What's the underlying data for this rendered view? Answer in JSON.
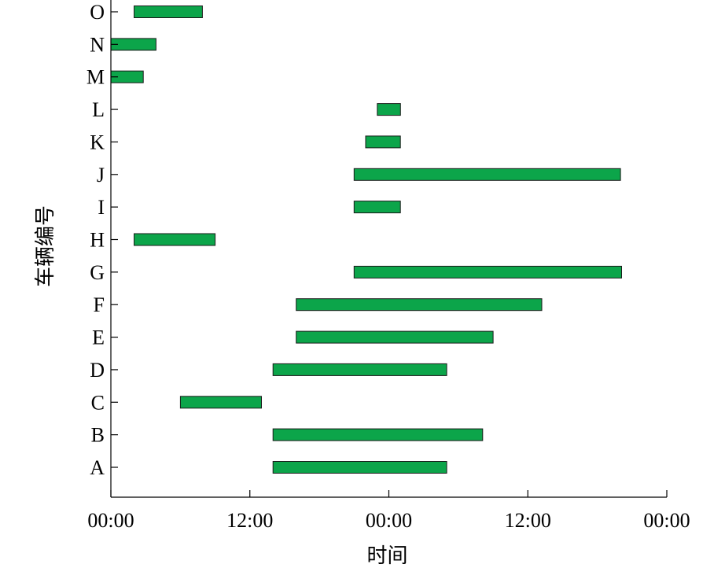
{
  "chart_data": {
    "type": "bar",
    "orientation": "horizontal",
    "variant": "gantt",
    "xlabel": "时间",
    "ylabel": "车辆编号",
    "x_unit": "hours",
    "xlim": [
      0,
      48
    ],
    "x_ticks": [
      0,
      12,
      24,
      36,
      48
    ],
    "x_tick_labels": [
      "00:00",
      "12:00",
      "00:00",
      "12:00",
      "00:00"
    ],
    "categories": [
      "A",
      "B",
      "C",
      "D",
      "E",
      "F",
      "G",
      "H",
      "I",
      "J",
      "K",
      "L",
      "M",
      "N",
      "O"
    ],
    "bars": [
      {
        "category": "A",
        "start": 14.0,
        "end": 29.0
      },
      {
        "category": "B",
        "start": 14.0,
        "end": 32.1
      },
      {
        "category": "C",
        "start": 6.0,
        "end": 13.0
      },
      {
        "category": "D",
        "start": 14.0,
        "end": 29.0
      },
      {
        "category": "E",
        "start": 16.0,
        "end": 33.0
      },
      {
        "category": "F",
        "start": 16.0,
        "end": 37.2
      },
      {
        "category": "G",
        "start": 21.0,
        "end": 44.1
      },
      {
        "category": "H",
        "start": 2.0,
        "end": 9.0
      },
      {
        "category": "I",
        "start": 21.0,
        "end": 25.0
      },
      {
        "category": "J",
        "start": 21.0,
        "end": 44.0
      },
      {
        "category": "K",
        "start": 22.0,
        "end": 25.0
      },
      {
        "category": "L",
        "start": 23.0,
        "end": 25.0
      },
      {
        "category": "M",
        "start": 0.0,
        "end": 2.8
      },
      {
        "category": "N",
        "start": 0.0,
        "end": 3.9
      },
      {
        "category": "O",
        "start": 2.0,
        "end": 7.9
      }
    ],
    "bar_color": "#0ca54a",
    "grid": false,
    "legend": "none"
  }
}
